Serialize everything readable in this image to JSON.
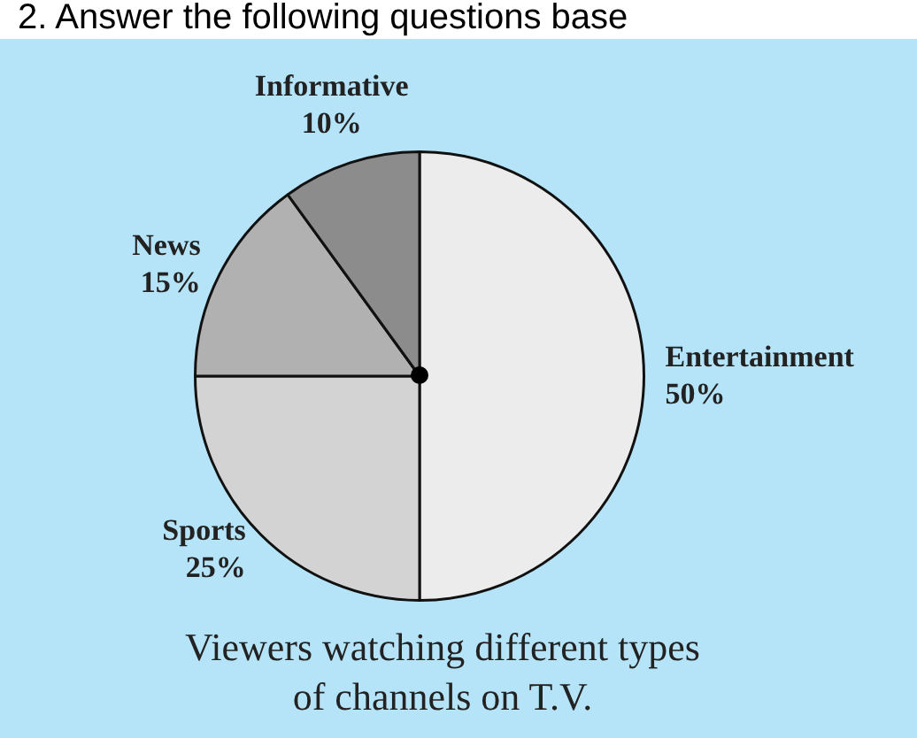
{
  "chart_data": {
    "type": "pie",
    "title": "Viewers watching different types of channels on T.V.",
    "annotations": [
      "2. Answer the following questions base"
    ],
    "categories": [
      "Entertainment",
      "Sports",
      "News",
      "Informative"
    ],
    "values": [
      50,
      25,
      15,
      10
    ],
    "value_labels": [
      "50%",
      "25%",
      "15%",
      "10%"
    ],
    "colors": [
      "#ececec",
      "#d3d3d3",
      "#b1b1b1",
      "#8c8c8c"
    ],
    "legend": false
  }
}
